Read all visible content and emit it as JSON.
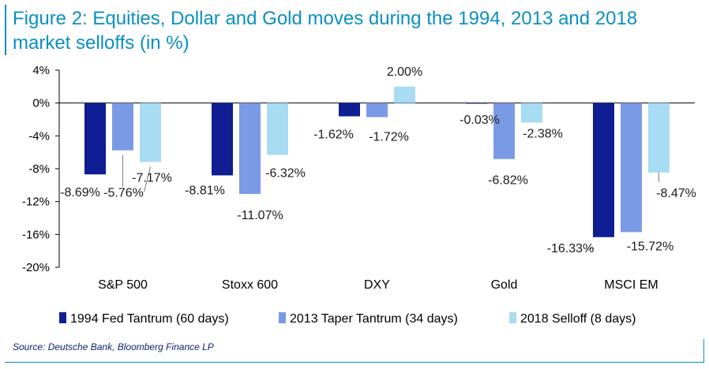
{
  "title": "Figure 2: Equities, Dollar and Gold moves during the 1994, 2013 and 2018 market selloffs (in %)",
  "source": "Source: Deutsche Bank, Bloomberg Finance LP",
  "colors": {
    "series_1994": "#0f1e93",
    "series_2013": "#7b9ae6",
    "series_2018": "#a7dcf3",
    "accent": "#0a8fc4",
    "axis": "#000000",
    "leader": "#7f7f7f"
  },
  "chart_data": {
    "type": "bar",
    "title": "Figure 2: Equities, Dollar and Gold moves during the 1994, 2013 and 2018 market selloffs (in %)",
    "xlabel": "",
    "ylabel": "",
    "ylim": [
      -20,
      4
    ],
    "yticks": [
      4,
      0,
      -4,
      -8,
      -12,
      -16,
      -20
    ],
    "ytick_labels": [
      "4%",
      "0%",
      "-4%",
      "-8%",
      "-12%",
      "-16%",
      "-20%"
    ],
    "grid": false,
    "legend_position": "bottom",
    "categories": [
      "S&P 500",
      "Stoxx 600",
      "DXY",
      "Gold",
      "MSCI EM"
    ],
    "series": [
      {
        "name": "1994 Fed Tantrum (60 days)",
        "values": [
          -8.69,
          -8.81,
          -1.62,
          -0.03,
          -16.33
        ],
        "labels": [
          "-8.69%",
          "-8.81%",
          "-1.62%",
          "-0.03%",
          "-16.33%"
        ]
      },
      {
        "name": "2013 Taper Tantrum (34 days)",
        "values": [
          -5.76,
          -11.07,
          -1.72,
          -6.82,
          -15.72
        ],
        "labels": [
          "-5.76%",
          "-11.07%",
          "-1.72%",
          "-6.82%",
          "-15.72%"
        ]
      },
      {
        "name": "2018 Selloff (8 days)",
        "values": [
          -7.17,
          -6.32,
          2.0,
          -2.38,
          -8.47
        ],
        "labels": [
          "-7.17%",
          "-6.32%",
          "2.00%",
          "-2.38%",
          "-8.47%"
        ]
      }
    ]
  }
}
